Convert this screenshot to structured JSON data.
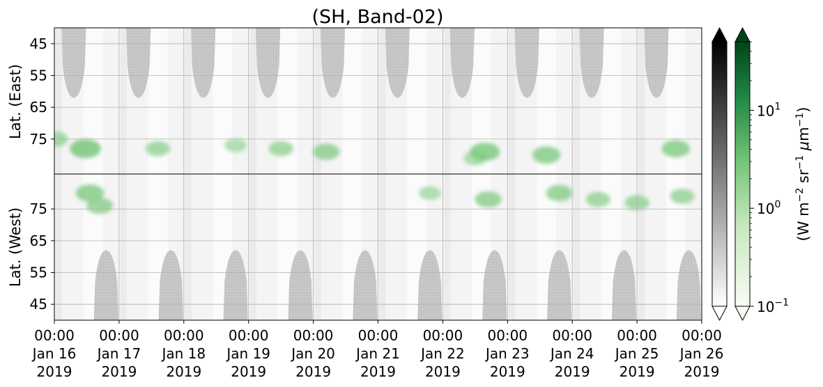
{
  "chart_data": {
    "type": "heatmap",
    "title": "(SH, Band-02)",
    "ylabel_east": "Lat. (East)",
    "ylabel_west": "Lat. (West)",
    "ylabel_colorbar": "(W m$^{-2}$ sr$^{-1}$ $\\mu$m$^{-1}$)",
    "ylabel_colorbar_parts": {
      "pre": "(W m",
      "sup1": "−2",
      "mid1": " sr",
      "sup2": "−1",
      "mid2": " ",
      "mu": "μ",
      "mid3": "m",
      "sup3": "−1",
      "post": ")"
    },
    "y_axis_east": {
      "ticks": [
        "45",
        "55",
        "65",
        "75"
      ],
      "range": [
        40,
        86
      ]
    },
    "y_axis_west": {
      "ticks": [
        "75",
        "65",
        "55",
        "45"
      ],
      "range": [
        86,
        40
      ]
    },
    "x_axis": {
      "range_days": [
        0,
        10
      ],
      "ticks": [
        {
          "time": "00:00",
          "date": "Jan 16",
          "year": "2019"
        },
        {
          "time": "00:00",
          "date": "Jan 17",
          "year": "2019"
        },
        {
          "time": "00:00",
          "date": "Jan 18",
          "year": "2019"
        },
        {
          "time": "00:00",
          "date": "Jan 19",
          "year": "2019"
        },
        {
          "time": "00:00",
          "date": "Jan 20",
          "year": "2019"
        },
        {
          "time": "00:00",
          "date": "Jan 21",
          "year": "2019"
        },
        {
          "time": "00:00",
          "date": "Jan 22",
          "year": "2019"
        },
        {
          "time": "00:00",
          "date": "Jan 23",
          "year": "2019"
        },
        {
          "time": "00:00",
          "date": "Jan 24",
          "year": "2019"
        },
        {
          "time": "00:00",
          "date": "Jan 25",
          "year": "2019"
        },
        {
          "time": "00:00",
          "date": "Jan 26",
          "year": "2019"
        }
      ]
    },
    "grid": true,
    "colorbar": {
      "scale": "log",
      "range": [
        0.1,
        50
      ],
      "ticks": [
        {
          "value": 0.1,
          "base": "10",
          "exp": "−1"
        },
        {
          "value": 1,
          "base": "10",
          "exp": "0"
        },
        {
          "value": 10,
          "base": "10",
          "exp": "1"
        }
      ],
      "colormaps": [
        "gray",
        "green"
      ],
      "extend": "both"
    },
    "colors": {
      "gray_dark": "#000000",
      "gray_light": "#ffffff",
      "green_dark": "#00441b",
      "green_light": "#f7fcf5",
      "night_gray": "#c8c8c8"
    },
    "dark_lobes_east": [
      0.3,
      1.3,
      2.3,
      3.3,
      4.3,
      5.3,
      6.3,
      7.3,
      8.3,
      9.3
    ],
    "dark_lobes_west": [
      0.8,
      1.8,
      2.8,
      3.8,
      4.8,
      5.8,
      6.8,
      7.8,
      8.8,
      9.8
    ],
    "green_patches": [
      {
        "day": 0.02,
        "lat": 75,
        "side": "east",
        "value": 1.5
      },
      {
        "day": 0.48,
        "lat": 78,
        "side": "east",
        "value": 3.5
      },
      {
        "day": 0.55,
        "lat": 80,
        "side": "west",
        "value": 2.5
      },
      {
        "day": 0.7,
        "lat": 76,
        "side": "west",
        "value": 2
      },
      {
        "day": 1.6,
        "lat": 78,
        "side": "east",
        "value": 1.5
      },
      {
        "day": 2.8,
        "lat": 77,
        "side": "east",
        "value": 1
      },
      {
        "day": 3.5,
        "lat": 78,
        "side": "east",
        "value": 1.5
      },
      {
        "day": 4.2,
        "lat": 79,
        "side": "east",
        "value": 2
      },
      {
        "day": 5.8,
        "lat": 80,
        "side": "west",
        "value": 1
      },
      {
        "day": 6.5,
        "lat": 81,
        "side": "east",
        "value": 1.2
      },
      {
        "day": 6.65,
        "lat": 79,
        "side": "east",
        "value": 3
      },
      {
        "day": 6.7,
        "lat": 78,
        "side": "west",
        "value": 2
      },
      {
        "day": 7.6,
        "lat": 80,
        "side": "east",
        "value": 2.5
      },
      {
        "day": 7.8,
        "lat": 80,
        "side": "west",
        "value": 2
      },
      {
        "day": 8.4,
        "lat": 78,
        "side": "west",
        "value": 1.5
      },
      {
        "day": 9.0,
        "lat": 77,
        "side": "west",
        "value": 1.5
      },
      {
        "day": 9.6,
        "lat": 78,
        "side": "east",
        "value": 2.5
      },
      {
        "day": 9.7,
        "lat": 79,
        "side": "west",
        "value": 1.5
      }
    ]
  }
}
